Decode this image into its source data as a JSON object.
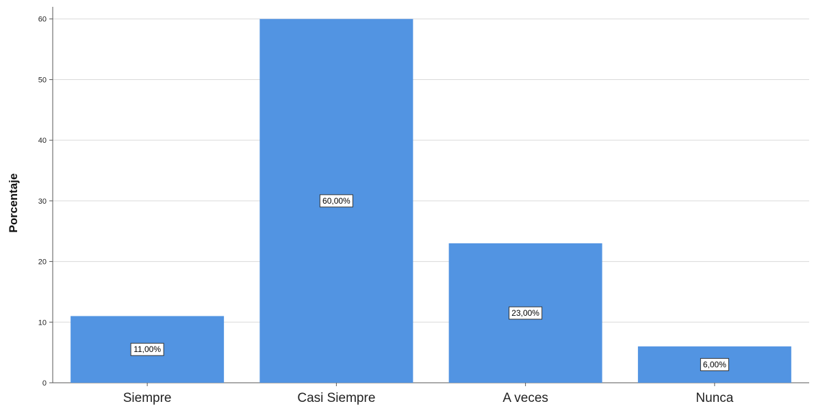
{
  "chart_data": {
    "type": "bar",
    "categories": [
      "Siempre",
      "Casi Siempre",
      "A veces",
      "Nunca"
    ],
    "values": [
      11,
      60,
      23,
      6
    ],
    "data_labels": [
      "11,00%",
      "60,00%",
      "23,00%",
      "6,00%"
    ],
    "title": "",
    "xlabel": "",
    "ylabel": "Porcentaje",
    "ylim": [
      0,
      62
    ],
    "yticks": [
      0,
      10,
      20,
      30,
      40,
      50,
      60
    ],
    "grid": "horizontal",
    "legend": "none",
    "bar_color": "#5294e2"
  }
}
